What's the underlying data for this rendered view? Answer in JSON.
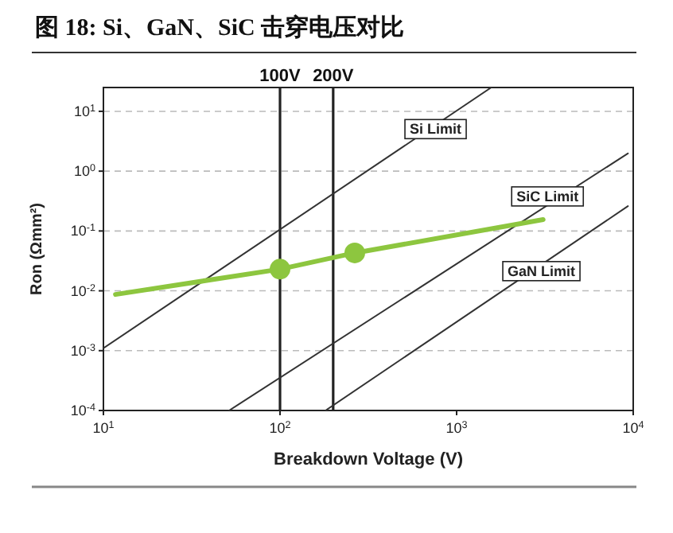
{
  "chart_data": {
    "type": "line",
    "title": "图 18: Si、GaN、SiC 击穿电压对比",
    "xlabel": "Breakdown Voltage (V)",
    "ylabel": "Ron (Ωmm²)",
    "log": "xy",
    "grid": "y",
    "xlim": [
      10,
      10000
    ],
    "ylim": [
      0.0001,
      25
    ],
    "xticks": [
      {
        "value": 10,
        "label": "10$^{1}$"
      },
      {
        "value": 100,
        "label": "10$^{2}$"
      },
      {
        "value": 1000,
        "label": "10$^{3}$"
      },
      {
        "value": 10000,
        "label": "10$^{4}$"
      }
    ],
    "yticks": [
      {
        "value": 0.0001,
        "label": "10$^{-4}$"
      },
      {
        "value": 0.001,
        "label": "10$^{-3}$"
      },
      {
        "value": 0.01,
        "label": "10$^{-2}$"
      },
      {
        "value": 0.1,
        "label": "10$^{-1}$"
      },
      {
        "value": 1,
        "label": "10$^{0}$"
      },
      {
        "value": 10,
        "label": "10$^{1}$"
      }
    ],
    "series": [
      {
        "color": "#333333",
        "marker": "none",
        "x": [
          10,
          1570
        ],
        "values": [
          0.0011,
          25
        ]
      },
      {
        "color": "#333333",
        "marker": "none",
        "x": [
          51.5,
          9330
        ],
        "values": [
          0.0001,
          1.98
        ]
      },
      {
        "color": "#333333",
        "marker": "none",
        "x": [
          181,
          9330
        ],
        "values": [
          0.0001,
          0.26
        ]
      },
      {
        "color": "#8dc63f",
        "marker": "none",
        "x": [
          11.7,
          100,
          265,
          3090
        ],
        "values": [
          0.0087,
          0.023,
          0.043,
          0.155
        ]
      },
      {
        "type": "scatter",
        "color": "#8dc63f",
        "marker": "circle",
        "x": [
          100,
          265
        ],
        "values": [
          0.023,
          0.043
        ]
      }
    ],
    "ref_lines": [
      {
        "axis": "x",
        "value": 100,
        "label": "100V",
        "color": "#222222"
      },
      {
        "axis": "x",
        "value": 200,
        "label": "200V",
        "color": "#222222"
      }
    ],
    "annotations": [
      {
        "text": "Si Limit",
        "x": 760,
        "y": 5.2
      },
      {
        "text": "SiC Limit",
        "x": 3270,
        "y": 0.39
      },
      {
        "text": "GaN Limit",
        "x": 3020,
        "y": 0.022
      }
    ]
  }
}
